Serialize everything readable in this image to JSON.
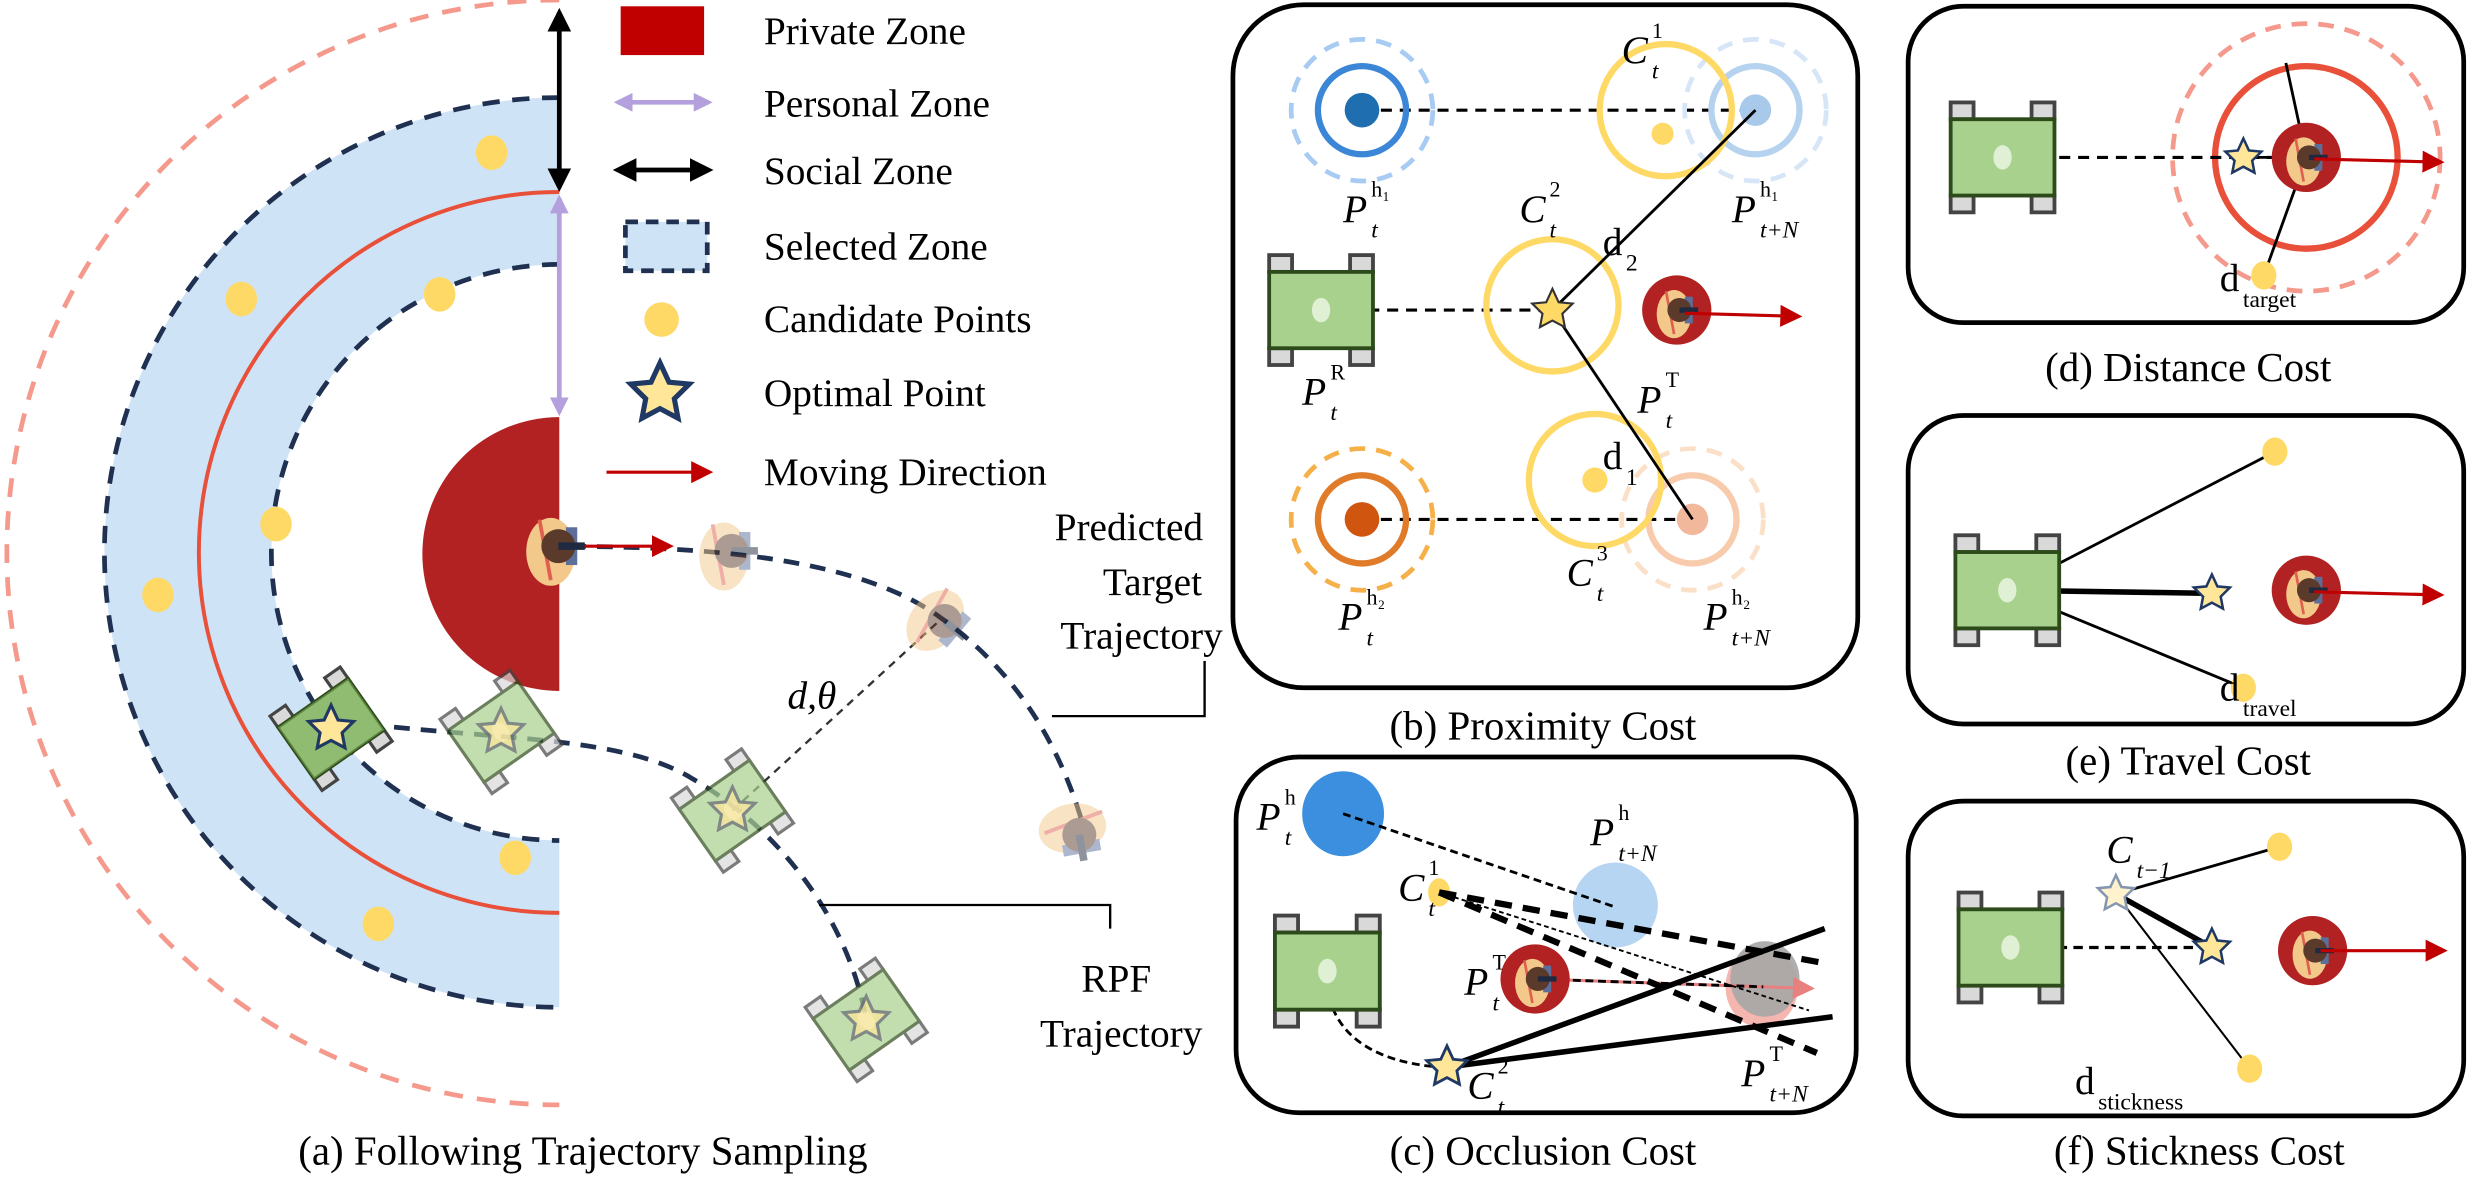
{
  "colors": {
    "private_zone": "#b22222",
    "legend_private": "#c00000",
    "personal_zone_arrow": "#b4a0dc",
    "social_zone_arrow": "#000000",
    "selected_zone_fill": "#cfe3f6",
    "selected_zone_border": "#1f3050",
    "candidate_point": "#ffd966",
    "optimal_star_fill": "#ffe699",
    "optimal_star_stroke": "#1f3864",
    "moving_direction": "#c00000",
    "personal_circle": "#e8503a",
    "social_circle": "#f4998c",
    "robot_body": "#a9d18e"
  },
  "legend": {
    "items": [
      {
        "label": "Private Zone",
        "icon": "red-rectangle-icon"
      },
      {
        "label": "Personal Zone",
        "icon": "lavender-double-arrow-icon"
      },
      {
        "label": "Social Zone",
        "icon": "black-double-arrow-icon"
      },
      {
        "label": "Selected Zone",
        "icon": "dashed-blue-rectangle-icon"
      },
      {
        "label": "Candidate Points",
        "icon": "yellow-dot-icon"
      },
      {
        "label": "Optimal  Point",
        "icon": "star-icon"
      },
      {
        "label": "Moving Direction",
        "icon": "red-arrow-icon"
      }
    ]
  },
  "panel_a": {
    "caption": "(a) Following Trajectory Sampling",
    "predicted_label": [
      "Predicted",
      "Target",
      "Trajectory"
    ],
    "rpf_label": [
      "RPF",
      "Trajectory"
    ],
    "d_theta": "d,θ"
  },
  "panel_b": {
    "caption": "(b) Proximity Cost",
    "labels": {
      "c1": {
        "base": "C",
        "sup": "1",
        "sub": "t"
      },
      "c2": {
        "base": "C",
        "sup": "2",
        "sub": "t"
      },
      "c3": {
        "base": "C",
        "sup": "3",
        "sub": "t"
      },
      "ph1": {
        "base": "P",
        "sup": "h₁",
        "sub": "t"
      },
      "ph1n": {
        "base": "P",
        "sup": "h₁",
        "sub": "t+N"
      },
      "ph2": {
        "base": "P",
        "sup": "h₂",
        "sub": "t"
      },
      "ph2n": {
        "base": "P",
        "sup": "h₂",
        "sub": "t+N"
      },
      "pr": {
        "base": "P",
        "sup": "R",
        "sub": "t"
      },
      "pt": {
        "base": "P",
        "sup": "T",
        "sub": "t"
      }
    },
    "d1": {
      "base": "d",
      "sub": "1"
    },
    "d2": {
      "base": "d",
      "sub": "2"
    }
  },
  "panel_c": {
    "caption": "(c) Occlusion Cost",
    "labels": {
      "ph": {
        "base": "P",
        "sup": "h",
        "sub": "t"
      },
      "phn": {
        "base": "P",
        "sup": "h",
        "sub": "t+N"
      },
      "c1": {
        "base": "C",
        "sup": "1",
        "sub": "t"
      },
      "pt": {
        "base": "P",
        "sup": "T",
        "sub": "t"
      },
      "c2": {
        "base": "C",
        "sup": "2",
        "sub": "t"
      },
      "ptn": {
        "base": "P",
        "sup": "T",
        "sub": "t+N"
      }
    }
  },
  "panel_d": {
    "caption": "(d) Distance Cost",
    "d": {
      "base": "d",
      "sub": "target"
    }
  },
  "panel_e": {
    "caption": "(e) Travel Cost",
    "d": {
      "base": "d",
      "sub": "travel"
    }
  },
  "panel_f": {
    "caption": "(f) Stickness Cost",
    "d": {
      "base": "d",
      "sub": "stickness"
    },
    "labels": {
      "cprev": {
        "base": "C",
        "sup": "",
        "sub": "t−1"
      }
    }
  }
}
